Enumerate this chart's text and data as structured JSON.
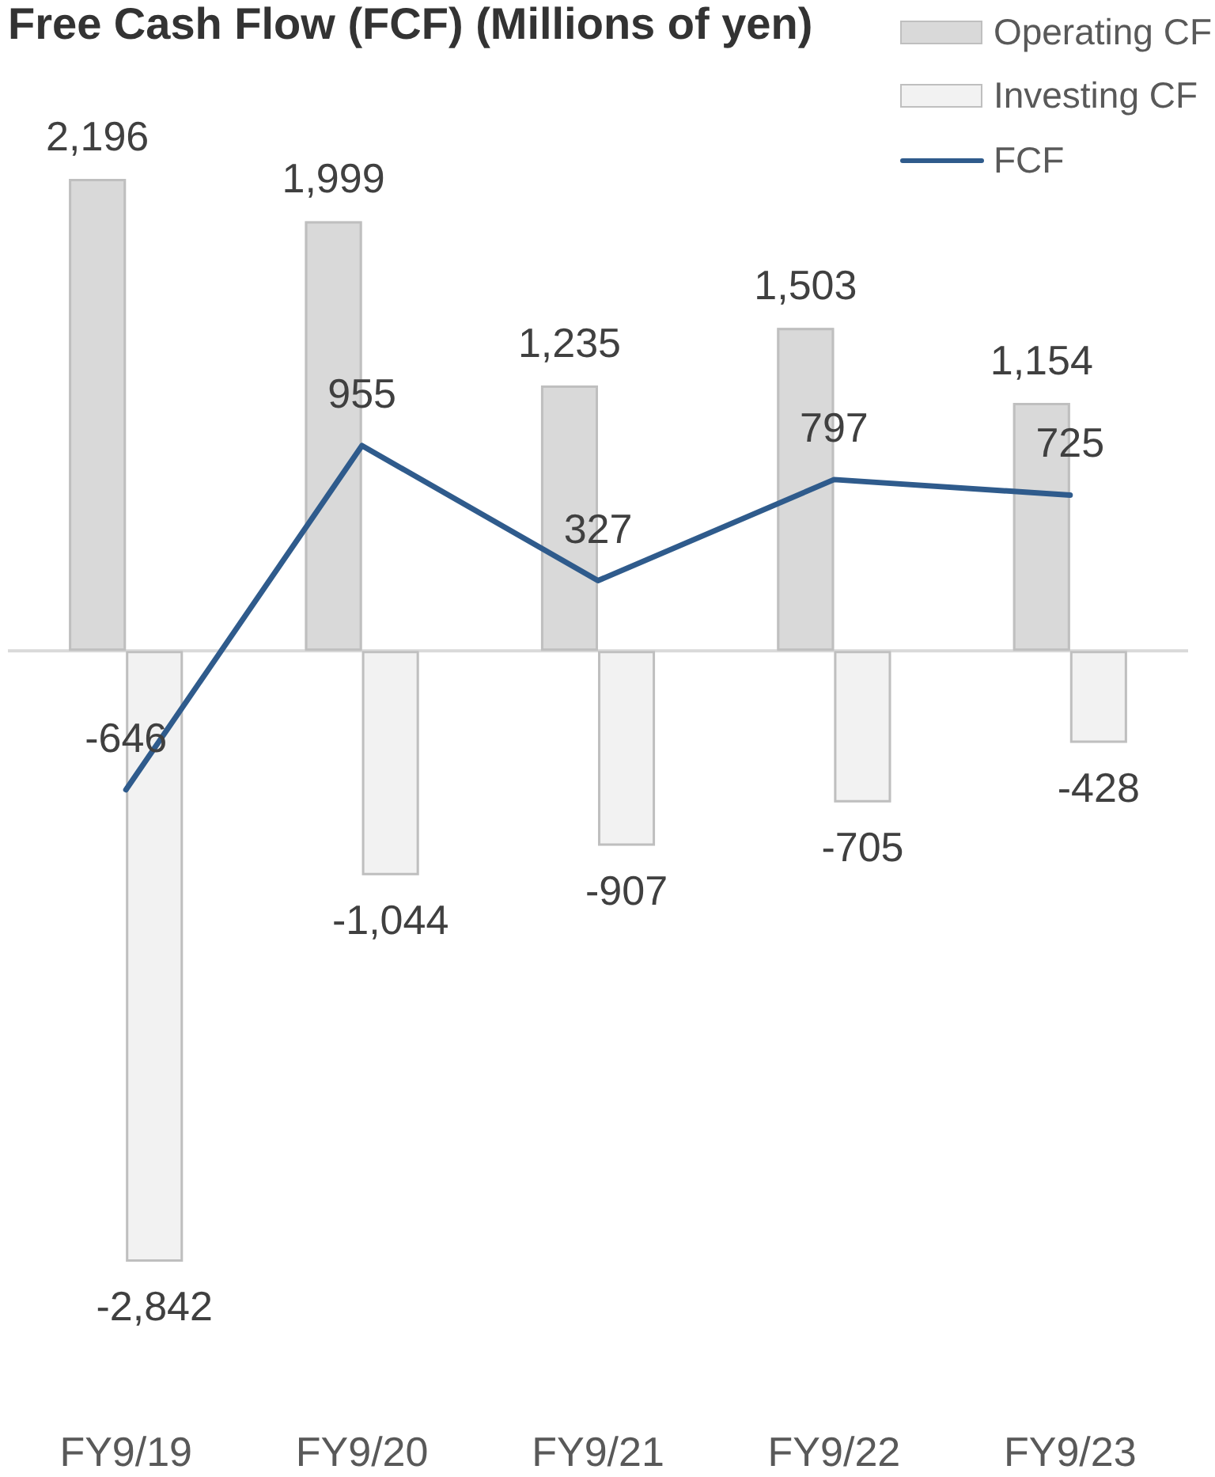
{
  "chart_data": {
    "type": "bar",
    "title": "Free Cash Flow (FCF) (Millions of yen)",
    "categories": [
      "FY9/19",
      "FY9/20",
      "FY9/21",
      "FY9/22",
      "FY9/23"
    ],
    "series": [
      {
        "name": "Operating CF",
        "color": "#d9d9d9",
        "values": [
          2196,
          1999,
          1235,
          1503,
          1154
        ],
        "value_labels": [
          "2,196",
          "1,999",
          "1,235",
          "1,503",
          "1,154"
        ]
      },
      {
        "name": "Investing CF",
        "color": "#f2f2f2",
        "values": [
          -2842,
          -1044,
          -907,
          -705,
          -428
        ],
        "value_labels": [
          "-2,842",
          "-1,044",
          "-907",
          "-705",
          "-428"
        ]
      },
      {
        "name": "FCF",
        "type": "line",
        "color": "#2f5b8c",
        "values": [
          -646,
          955,
          327,
          797,
          725
        ],
        "value_labels": [
          "-646",
          "955",
          "327",
          "797",
          "725"
        ]
      }
    ],
    "legend": "top right"
  }
}
